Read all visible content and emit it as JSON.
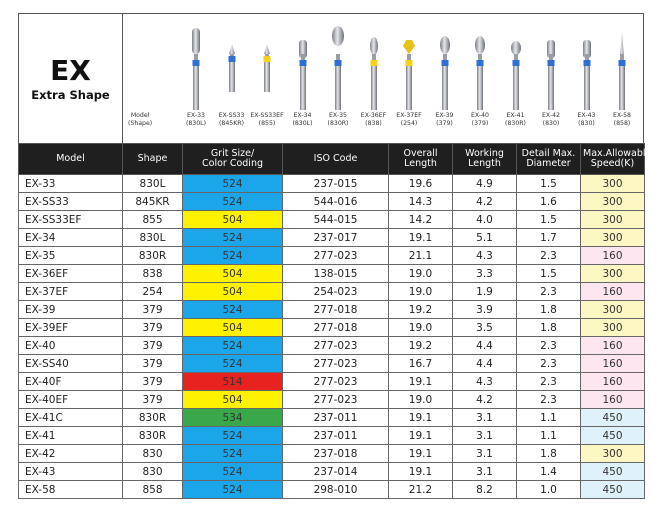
{
  "series": {
    "code": "EX",
    "name": "Extra Shape"
  },
  "shape_header_label": "Model\n(Shape)",
  "burs": [
    {
      "label": "EX-33\n(830L)",
      "band": "#2e6fd6",
      "head": "cyl-long"
    },
    {
      "label": "EX-SS33\n(845KR)",
      "band": "#2e6fd6",
      "head": "cone-short"
    },
    {
      "label": "EX-SS33EF\n(855)",
      "band": "#f2d21a",
      "head": "cone-short"
    },
    {
      "label": "EX-34\n(830L)",
      "band": "#2e6fd6",
      "head": "cyl"
    },
    {
      "label": "EX-35\n(830R)",
      "band": "#2e6fd6",
      "head": "oval"
    },
    {
      "label": "EX-36EF\n(838)",
      "band": "#f2d21a",
      "head": "bud"
    },
    {
      "label": "EX-37EF\n(254)",
      "band": "#f2d21a",
      "head": "gem"
    },
    {
      "label": "EX-39\n(379)",
      "band": "#2e6fd6",
      "head": "egg"
    },
    {
      "label": "EX-40\n(379)",
      "band": "#2e6fd6",
      "head": "egg"
    },
    {
      "label": "EX-41\n(830R)",
      "band": "#2e6fd6",
      "head": "egg-small"
    },
    {
      "label": "EX-42\n(830)",
      "band": "#2e6fd6",
      "head": "cyl"
    },
    {
      "label": "EX-43\n(830)",
      "band": "#2e6fd6",
      "head": "cyl"
    },
    {
      "label": "EX-58\n(858)",
      "band": "#2e6fd6",
      "head": "needle"
    }
  ],
  "columns": [
    "Model",
    "Shape",
    "Grit Size/\nColor Coding",
    "ISO Code",
    "Overall\nLength",
    "Working\nLength",
    "Detail Max.\nDiameter",
    "Max.Allowable\nSpeed(K)"
  ],
  "colors": {
    "grit": {
      "524": "#1aa6e8",
      "504": "#fff200",
      "514": "#e8231f",
      "534": "#38a84a"
    },
    "speed": {
      "300": "#fdf7c4",
      "160": "#fde6ef",
      "450": "#dff1fb"
    }
  },
  "rows": [
    {
      "model": "EX-33",
      "shape": "830L",
      "grit": "524",
      "iso": "237-015",
      "overall": "19.6",
      "working": "4.9",
      "diameter": "1.5",
      "speed": "300"
    },
    {
      "model": "EX-SS33",
      "shape": "845KR",
      "grit": "524",
      "iso": "544-016",
      "overall": "14.3",
      "working": "4.2",
      "diameter": "1.6",
      "speed": "300"
    },
    {
      "model": "EX-SS33EF",
      "shape": "855",
      "grit": "504",
      "iso": "544-015",
      "overall": "14.2",
      "working": "4.0",
      "diameter": "1.5",
      "speed": "300"
    },
    {
      "model": "EX-34",
      "shape": "830L",
      "grit": "524",
      "iso": "237-017",
      "overall": "19.1",
      "working": "5.1",
      "diameter": "1.7",
      "speed": "300"
    },
    {
      "model": "EX-35",
      "shape": "830R",
      "grit": "524",
      "iso": "277-023",
      "overall": "21.1",
      "working": "4.3",
      "diameter": "2.3",
      "speed": "160"
    },
    {
      "model": "EX-36EF",
      "shape": "838",
      "grit": "504",
      "iso": "138-015",
      "overall": "19.0",
      "working": "3.3",
      "diameter": "1.5",
      "speed": "300"
    },
    {
      "model": "EX-37EF",
      "shape": "254",
      "grit": "504",
      "iso": "254-023",
      "overall": "19.0",
      "working": "1.9",
      "diameter": "2.3",
      "speed": "160"
    },
    {
      "model": "EX-39",
      "shape": "379",
      "grit": "524",
      "iso": "277-018",
      "overall": "19.2",
      "working": "3.9",
      "diameter": "1.8",
      "speed": "300"
    },
    {
      "model": "EX-39EF",
      "shape": "379",
      "grit": "504",
      "iso": "277-018",
      "overall": "19.0",
      "working": "3.5",
      "diameter": "1.8",
      "speed": "300"
    },
    {
      "model": "EX-40",
      "shape": "379",
      "grit": "524",
      "iso": "277-023",
      "overall": "19.2",
      "working": "4.4",
      "diameter": "2.3",
      "speed": "160"
    },
    {
      "model": "EX-SS40",
      "shape": "379",
      "grit": "524",
      "iso": "277-023",
      "overall": "16.7",
      "working": "4.4",
      "diameter": "2.3",
      "speed": "160"
    },
    {
      "model": "EX-40F",
      "shape": "379",
      "grit": "514",
      "iso": "277-023",
      "overall": "19.1",
      "working": "4.3",
      "diameter": "2.3",
      "speed": "160"
    },
    {
      "model": "EX-40EF",
      "shape": "379",
      "grit": "504",
      "iso": "277-023",
      "overall": "19.0",
      "working": "4.2",
      "diameter": "2.3",
      "speed": "160"
    },
    {
      "model": "EX-41C",
      "shape": "830R",
      "grit": "534",
      "iso": "237-011",
      "overall": "19.1",
      "working": "3.1",
      "diameter": "1.1",
      "speed": "450"
    },
    {
      "model": "EX-41",
      "shape": "830R",
      "grit": "524",
      "iso": "237-011",
      "overall": "19.1",
      "working": "3.1",
      "diameter": "1.1",
      "speed": "450"
    },
    {
      "model": "EX-42",
      "shape": "830",
      "grit": "524",
      "iso": "237-018",
      "overall": "19.1",
      "working": "3.1",
      "diameter": "1.8",
      "speed": "300"
    },
    {
      "model": "EX-43",
      "shape": "830",
      "grit": "524",
      "iso": "237-014",
      "overall": "19.1",
      "working": "3.1",
      "diameter": "1.4",
      "speed": "450"
    },
    {
      "model": "EX-58",
      "shape": "858",
      "grit": "524",
      "iso": "298-010",
      "overall": "21.2",
      "working": "8.2",
      "diameter": "1.0",
      "speed": "450"
    }
  ]
}
